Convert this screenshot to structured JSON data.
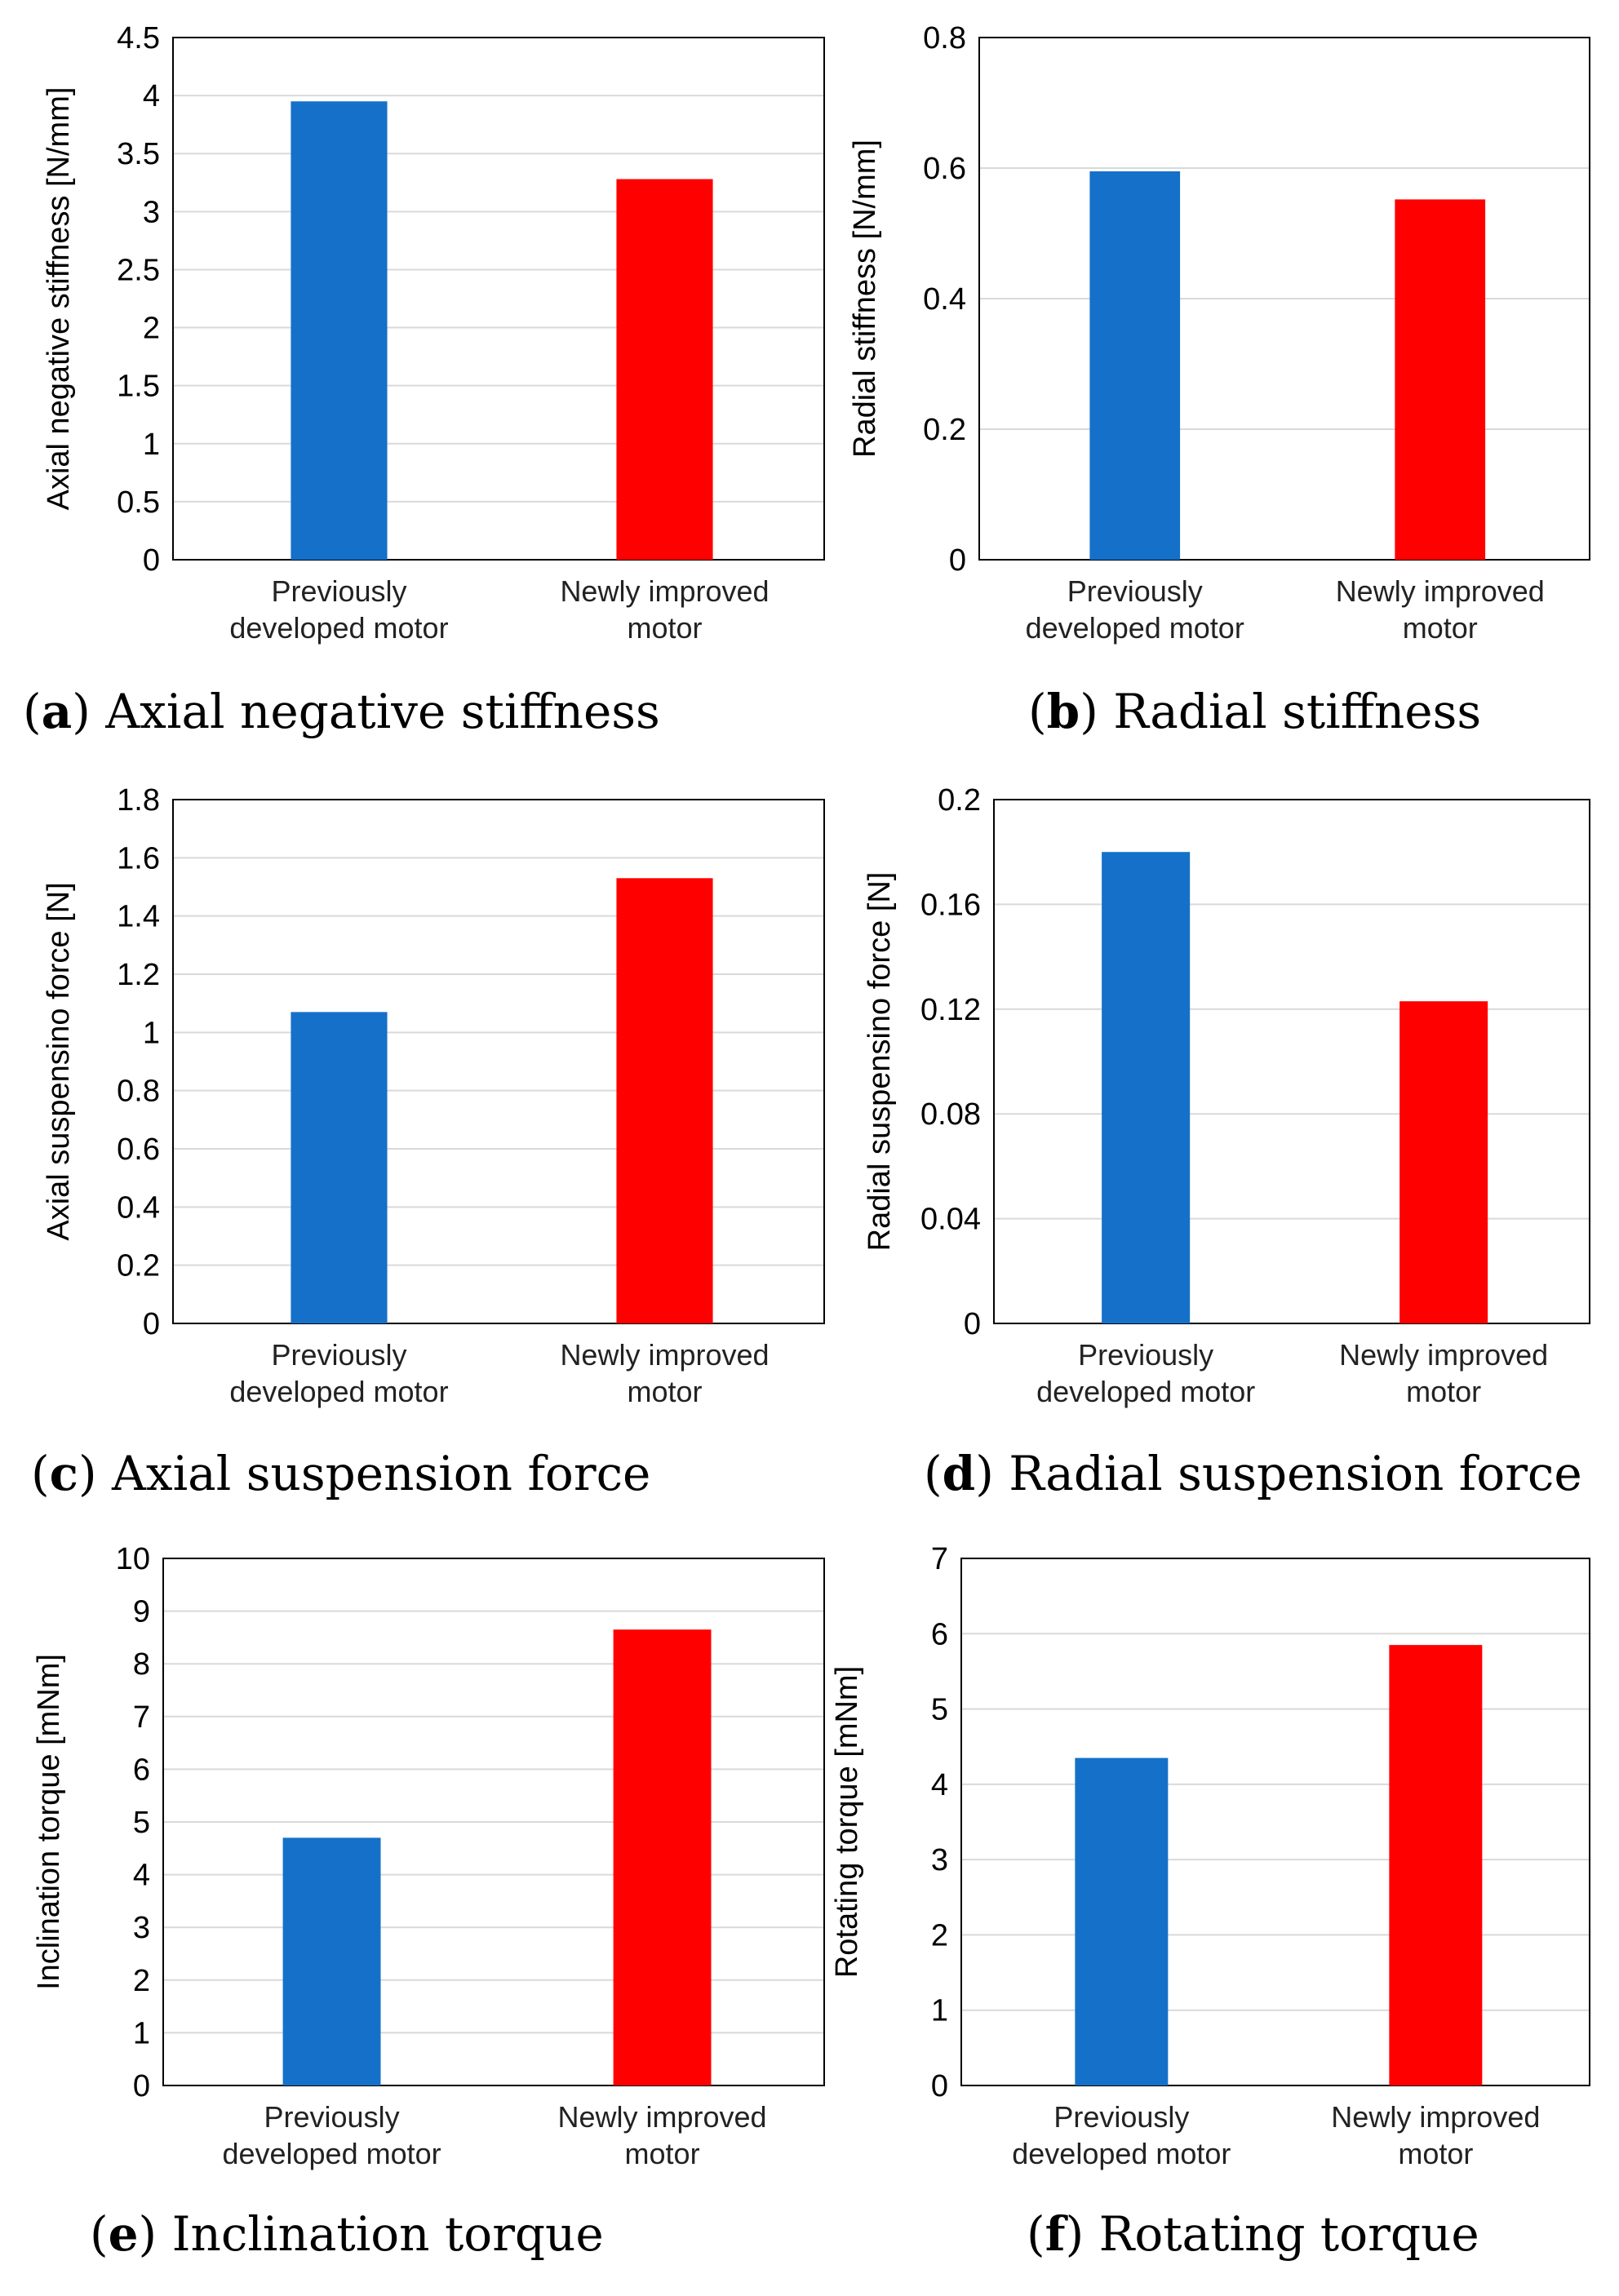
{
  "colors": {
    "prev": "#1570c9",
    "new": "#ff0000",
    "grid": "#d9d9d9",
    "frame": "#000000"
  },
  "chart_data": [
    {
      "type": "bar",
      "panel": "a",
      "caption_letter": "a",
      "caption_text": "Axial negative stiffness",
      "ylabel": "Axial negative stiffness [N/mm]",
      "categories": [
        [
          "Previously",
          "developed motor"
        ],
        [
          "Newly improved",
          "motor"
        ]
      ],
      "values": [
        3.95,
        3.28
      ],
      "ylim": [
        0,
        4.5
      ],
      "ticks": [
        "0",
        "0.5",
        "1",
        "1.5",
        "2",
        "2.5",
        "3",
        "3.5",
        "4",
        "4.5"
      ]
    },
    {
      "type": "bar",
      "panel": "b",
      "caption_letter": "b",
      "caption_text": "Radial stiffness",
      "ylabel": "Radial stiffness [N/mm]",
      "categories": [
        [
          "Previously",
          "developed motor"
        ],
        [
          "Newly improved",
          "motor"
        ]
      ],
      "values": [
        0.595,
        0.552
      ],
      "ylim": [
        0,
        0.8
      ],
      "ticks": [
        "0",
        "0.2",
        "0.4",
        "0.6",
        "0.8"
      ]
    },
    {
      "type": "bar",
      "panel": "c",
      "caption_letter": "c",
      "caption_text": "Axial suspension force",
      "ylabel": "Axial suspensino force [N]",
      "categories": [
        [
          "Previously",
          "developed motor"
        ],
        [
          "Newly improved",
          "motor"
        ]
      ],
      "values": [
        1.07,
        1.53
      ],
      "ylim": [
        0,
        1.8
      ],
      "ticks": [
        "0",
        "0.2",
        "0.4",
        "0.6",
        "0.8",
        "1",
        "1.2",
        "1.4",
        "1.6",
        "1.8"
      ]
    },
    {
      "type": "bar",
      "panel": "d",
      "caption_letter": "d",
      "caption_text": "Radial suspension force",
      "ylabel": "Radial suspensino force [N]",
      "categories": [
        [
          "Previously",
          "developed motor"
        ],
        [
          "Newly improved",
          "motor"
        ]
      ],
      "values": [
        0.18,
        0.123
      ],
      "ylim": [
        0,
        0.2
      ],
      "ticks": [
        "0",
        "0.04",
        "0.08",
        "0.12",
        "0.16",
        "0.2"
      ]
    },
    {
      "type": "bar",
      "panel": "e",
      "caption_letter": "e",
      "caption_text": "Inclination torque",
      "ylabel": "Inclination torque [mNm]",
      "categories": [
        [
          "Previously",
          "developed motor"
        ],
        [
          "Newly improved",
          "motor"
        ]
      ],
      "values": [
        4.7,
        8.65
      ],
      "ylim": [
        0,
        10
      ],
      "ticks": [
        "0",
        "1",
        "2",
        "3",
        "4",
        "5",
        "6",
        "7",
        "8",
        "9",
        "10"
      ]
    },
    {
      "type": "bar",
      "panel": "f",
      "caption_letter": "f",
      "caption_text": "Rotating torque",
      "ylabel": "Rotating torque [mNm]",
      "categories": [
        [
          "Previously",
          "developed motor"
        ],
        [
          "Newly improved",
          "motor"
        ]
      ],
      "values": [
        4.35,
        5.85
      ],
      "ylim": [
        0,
        7
      ],
      "ticks": [
        "0",
        "1",
        "2",
        "3",
        "4",
        "5",
        "6",
        "7"
      ]
    }
  ]
}
